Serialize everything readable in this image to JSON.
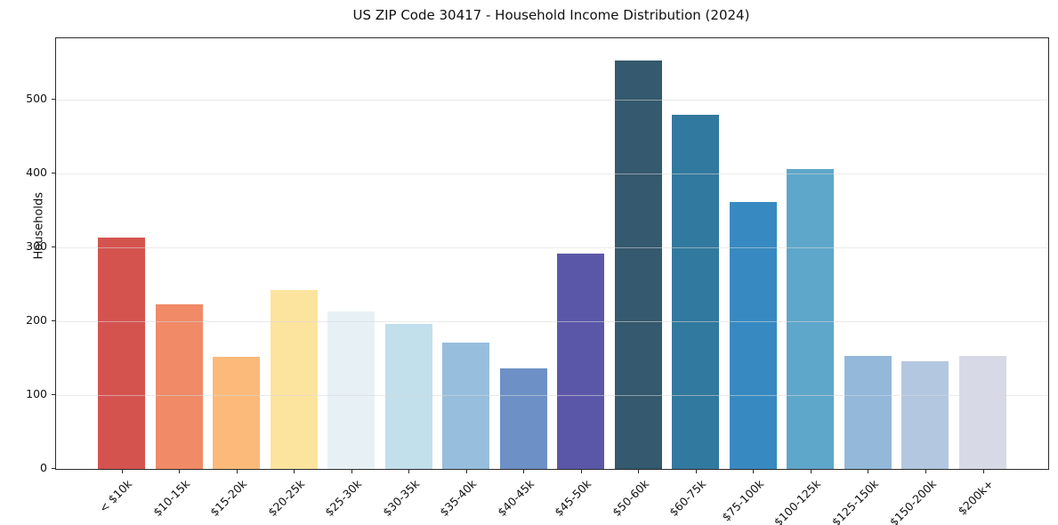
{
  "chart_data": {
    "type": "bar",
    "title": "US ZIP Code 30417 - Household Income Distribution (2024)",
    "xlabel": "",
    "ylabel": "Households",
    "categories": [
      "< $10k",
      "$10-15k",
      "$15-20k",
      "$20-25k",
      "$25-30k",
      "$30-35k",
      "$35-40k",
      "$40-45k",
      "$45-50k",
      "$50-60k",
      "$60-75k",
      "$75-100k",
      "$100-125k",
      "$125-150k",
      "$150-200k",
      "$200k+"
    ],
    "values": [
      313,
      223,
      152,
      242,
      213,
      196,
      171,
      136,
      292,
      553,
      480,
      361,
      406,
      153,
      146,
      153
    ],
    "bar_colors": [
      "#d5534f",
      "#f08a67",
      "#fbba79",
      "#fce49e",
      "#e7f1f5",
      "#c2dfec",
      "#97bedd",
      "#6d90c6",
      "#5b57a8",
      "#35596e",
      "#32799f",
      "#378ac1",
      "#5ea7ca",
      "#93b8da",
      "#b4c7e1",
      "#d7d9e6"
    ],
    "yticks": [
      0,
      100,
      200,
      300,
      400,
      500
    ],
    "ylim": [
      0,
      583
    ],
    "grid": "horizontal-on-top",
    "grid_color": "#e6e6e6",
    "legend": "none",
    "background": "#ffffff"
  }
}
